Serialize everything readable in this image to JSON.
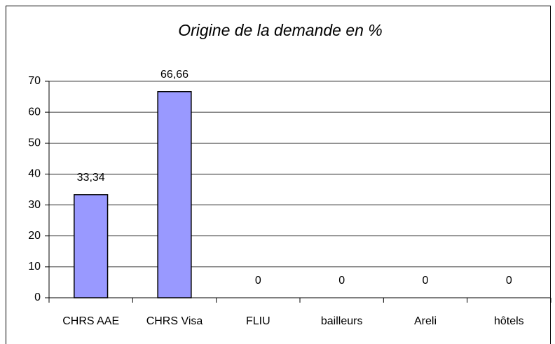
{
  "chart_data": {
    "type": "bar",
    "title": "Origine de la demande en %",
    "categories": [
      "CHRS AAE",
      "CHRS Visa",
      "FLIU",
      "bailleurs",
      "Areli",
      "hôtels"
    ],
    "values": [
      33.34,
      66.66,
      0,
      0,
      0,
      0
    ],
    "value_labels": [
      "33,34",
      "66,66",
      "0",
      "0",
      "0",
      "0"
    ],
    "color": "#9999ff",
    "ylim": [
      0,
      70
    ],
    "yticks": [
      0,
      10,
      20,
      30,
      40,
      50,
      60,
      70
    ],
    "grid": true
  }
}
